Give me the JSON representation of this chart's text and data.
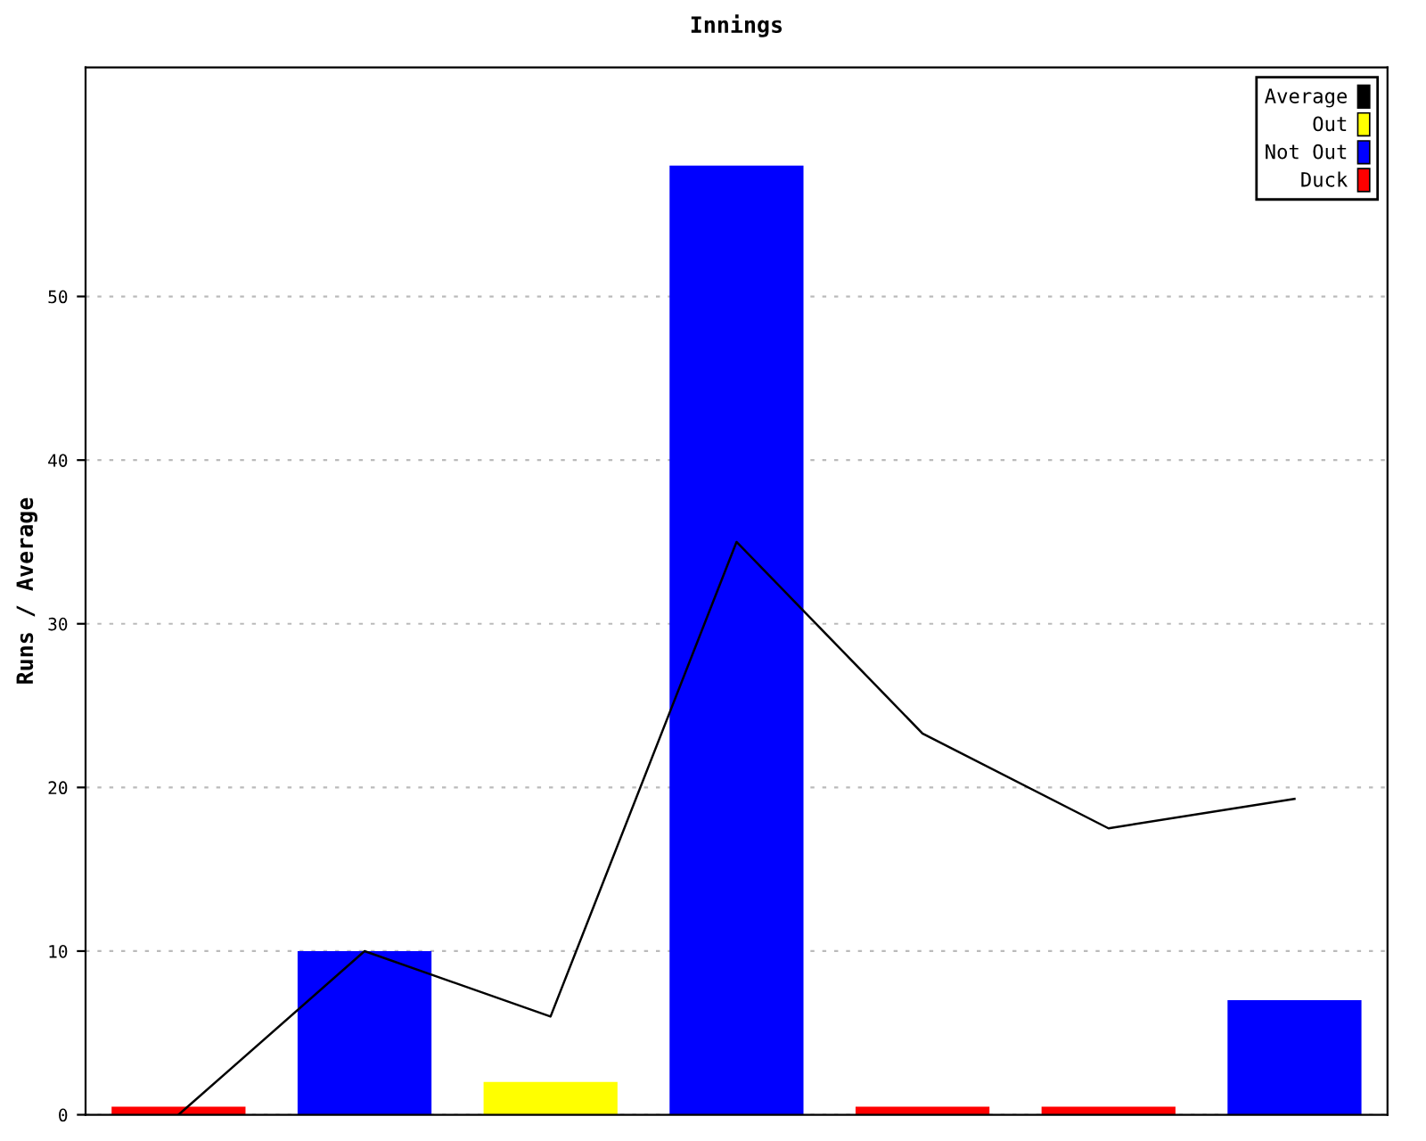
{
  "chart_data": {
    "type": "bar",
    "title": "Innings",
    "ylabel": "Runs / Average",
    "categories": [
      null,
      null,
      null,
      null,
      null,
      null,
      null
    ],
    "series": [
      {
        "name": "Average",
        "type": "line",
        "color": "#000000",
        "values": [
          0,
          10,
          6,
          35,
          23.3,
          17.5,
          19.3
        ]
      },
      {
        "name": "Out",
        "color": "#ffff00",
        "values": [
          null,
          null,
          2,
          null,
          null,
          null,
          null
        ]
      },
      {
        "name": "Not Out",
        "color": "#0000ff",
        "values": [
          null,
          10,
          null,
          58,
          null,
          null,
          7
        ]
      },
      {
        "name": "Duck",
        "color": "#ff0000",
        "values": [
          0.5,
          null,
          null,
          null,
          0.5,
          0.5,
          null
        ]
      }
    ],
    "ylim": [
      0,
      64
    ],
    "yticks": [
      0,
      10,
      20,
      30,
      40,
      50
    ],
    "grid": "y",
    "legend": "top right",
    "marker": "none",
    "line_style": "solid"
  }
}
